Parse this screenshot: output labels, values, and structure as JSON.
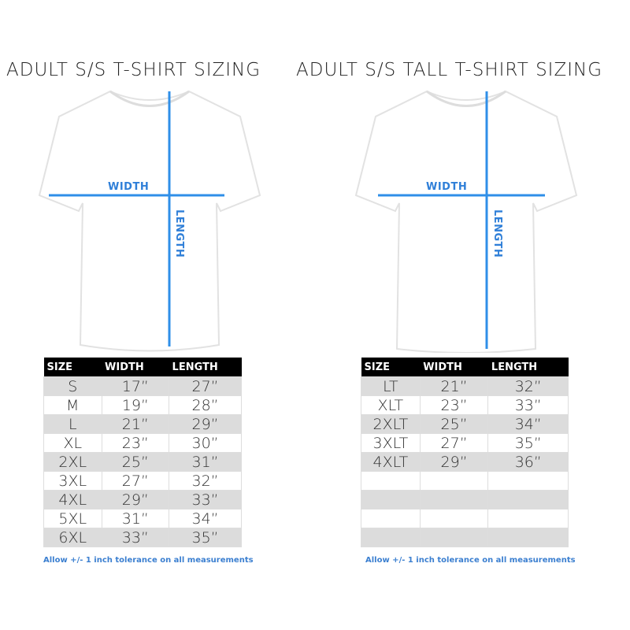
{
  "left": {
    "title": "ADULT S/S T-SHIRT SIZING",
    "width_label": "WIDTH",
    "length_label": "LENGTH",
    "headers": [
      "SIZE",
      "WIDTH",
      "LENGTH"
    ],
    "rows": [
      [
        "S",
        "17”",
        "27”"
      ],
      [
        "M",
        "19”",
        "28”"
      ],
      [
        "L",
        "21”",
        "29”"
      ],
      [
        "XL",
        "23”",
        "30”"
      ],
      [
        "2XL",
        "25”",
        "31”"
      ],
      [
        "3XL",
        "27”",
        "32”"
      ],
      [
        "4XL",
        "29”",
        "33”"
      ],
      [
        "5XL",
        "31”",
        "34”"
      ],
      [
        "6XL",
        "33”",
        "35”"
      ]
    ],
    "note": "Allow +/- 1 inch tolerance on all measurements"
  },
  "right": {
    "title": "ADULT S/S TALL T-SHIRT SIZING",
    "width_label": "WIDTH",
    "length_label": "LENGTH",
    "headers": [
      "SIZE",
      "WIDTH",
      "LENGTH"
    ],
    "rows": [
      [
        "LT",
        "21”",
        "32”"
      ],
      [
        "XLT",
        "23”",
        "33”"
      ],
      [
        "2XLT",
        "25”",
        "34”"
      ],
      [
        "3XLT",
        "27”",
        "35”"
      ],
      [
        "4XLT",
        "29”",
        "36”"
      ],
      [
        "",
        "",
        ""
      ],
      [
        "",
        "",
        ""
      ],
      [
        "",
        "",
        ""
      ],
      [
        "",
        "",
        ""
      ]
    ],
    "note": "Allow +/- 1 inch tolerance on all measurements"
  },
  "colors": {
    "accent": "#2f7fd8",
    "header_bg": "#000000",
    "stripe": "#dcdcdc"
  }
}
